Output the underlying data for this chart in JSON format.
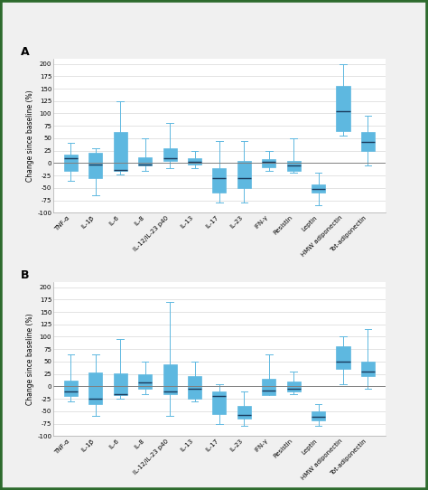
{
  "labels": [
    "TNF-α",
    "IL-1β",
    "IL-6",
    "IL-8",
    "IL-12/IL-23 p40",
    "IL-13",
    "IL-17",
    "IL-23",
    "IFN-γ",
    "Resistin",
    "Leptin",
    "HMW adiponectin",
    "Tot-adiponectin"
  ],
  "panel_A": [
    {
      "whislo": -35,
      "q1": -15,
      "med": 10,
      "q3": 18,
      "whishi": 40
    },
    {
      "whislo": -65,
      "q1": -30,
      "med": -2,
      "q3": 20,
      "whishi": 30
    },
    {
      "whislo": -22,
      "q1": -15,
      "med": -13,
      "q3": 62,
      "whishi": 125
    },
    {
      "whislo": -15,
      "q1": -5,
      "med": -2,
      "q3": 12,
      "whishi": 50
    },
    {
      "whislo": -10,
      "q1": 5,
      "med": 10,
      "q3": 30,
      "whishi": 80
    },
    {
      "whislo": -10,
      "q1": -3,
      "med": 2,
      "q3": 10,
      "whishi": 25
    },
    {
      "whislo": -80,
      "q1": -60,
      "med": -30,
      "q3": -10,
      "whishi": 45
    },
    {
      "whislo": -80,
      "q1": -50,
      "med": -30,
      "q3": 5,
      "whishi": 45
    },
    {
      "whislo": -15,
      "q1": -8,
      "med": 2,
      "q3": 8,
      "whishi": 25
    },
    {
      "whislo": -20,
      "q1": -15,
      "med": -5,
      "q3": 5,
      "whishi": 50
    },
    {
      "whislo": -85,
      "q1": -60,
      "med": -52,
      "q3": -43,
      "whishi": -20
    },
    {
      "whislo": 55,
      "q1": 65,
      "med": 105,
      "q3": 155,
      "whishi": 200
    },
    {
      "whislo": -5,
      "q1": 25,
      "med": 42,
      "q3": 62,
      "whishi": 95
    }
  ],
  "panel_B": [
    {
      "whislo": -30,
      "q1": -20,
      "med": -10,
      "q3": 12,
      "whishi": 65
    },
    {
      "whislo": -60,
      "q1": -35,
      "med": -25,
      "q3": 28,
      "whishi": 65
    },
    {
      "whislo": -25,
      "q1": -18,
      "med": -15,
      "q3": 26,
      "whishi": 95
    },
    {
      "whislo": -15,
      "q1": -5,
      "med": 8,
      "q3": 25,
      "whishi": 50
    },
    {
      "whislo": -60,
      "q1": -15,
      "med": -10,
      "q3": 45,
      "whishi": 170
    },
    {
      "whislo": -30,
      "q1": -25,
      "med": -5,
      "q3": 20,
      "whishi": 50
    },
    {
      "whislo": -75,
      "q1": -55,
      "med": -20,
      "q3": -10,
      "whishi": 5
    },
    {
      "whislo": -80,
      "q1": -65,
      "med": -58,
      "q3": -40,
      "whishi": -10
    },
    {
      "whislo": -15,
      "q1": -18,
      "med": -8,
      "q3": 15,
      "whishi": 65
    },
    {
      "whislo": -15,
      "q1": -10,
      "med": -5,
      "q3": 10,
      "whishi": 30
    },
    {
      "whislo": -80,
      "q1": -68,
      "med": -62,
      "q3": -50,
      "whishi": -35
    },
    {
      "whislo": 5,
      "q1": 35,
      "med": 50,
      "q3": 80,
      "whishi": 100
    },
    {
      "whislo": -5,
      "q1": 20,
      "med": 30,
      "q3": 50,
      "whishi": 115
    }
  ],
  "box_color": "#5eb8e0",
  "median_color": "#1a3a5c",
  "whisker_color": "#5eb8e0",
  "cap_color": "#5eb8e0",
  "background_color": "#f0f0f0",
  "plot_background": "#ffffff",
  "grid_color": "#d8d8d8",
  "zero_line_color": "#808080",
  "border_color": "#3a6b35",
  "ylabel": "Change since baseline (%)",
  "ylim": [
    -100,
    210
  ],
  "yticks": [
    -100,
    -75,
    -50,
    -25,
    0,
    25,
    50,
    75,
    100,
    125,
    150,
    175,
    200
  ],
  "panel_labels": [
    "A",
    "B"
  ],
  "box_width": 0.55
}
